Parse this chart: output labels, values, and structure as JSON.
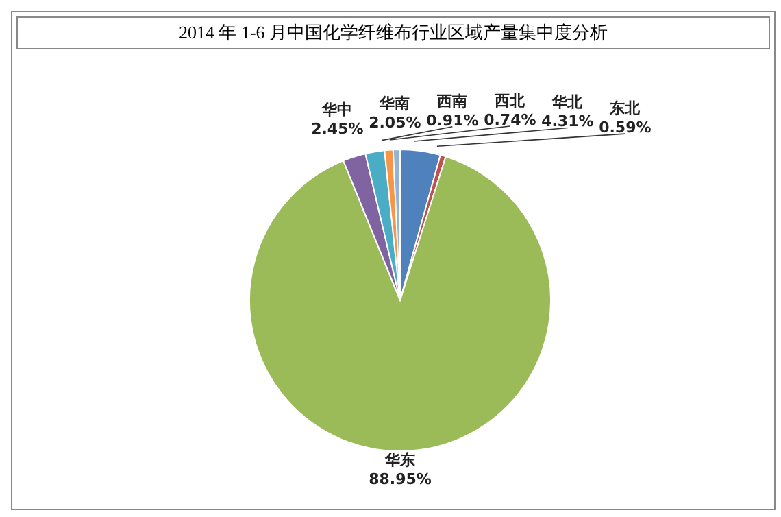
{
  "chart_data": {
    "type": "pie",
    "title": "2014 年 1-6 月中国化学纤维布行业区域产量集中度分析",
    "categories": [
      "华北",
      "东北",
      "华东",
      "华中",
      "华南",
      "西南",
      "西北"
    ],
    "values": [
      4.31,
      0.59,
      88.95,
      2.45,
      2.05,
      0.91,
      0.74
    ],
    "colors": [
      "#4f81bd",
      "#c0504d",
      "#9bbb59",
      "#8064a2",
      "#4bacc6",
      "#f79646",
      "#95b3d7"
    ],
    "value_labels": [
      "4.31%",
      "0.59%",
      "88.95%",
      "2.45%",
      "2.05%",
      "0.91%",
      "0.74%"
    ],
    "legend": false
  }
}
